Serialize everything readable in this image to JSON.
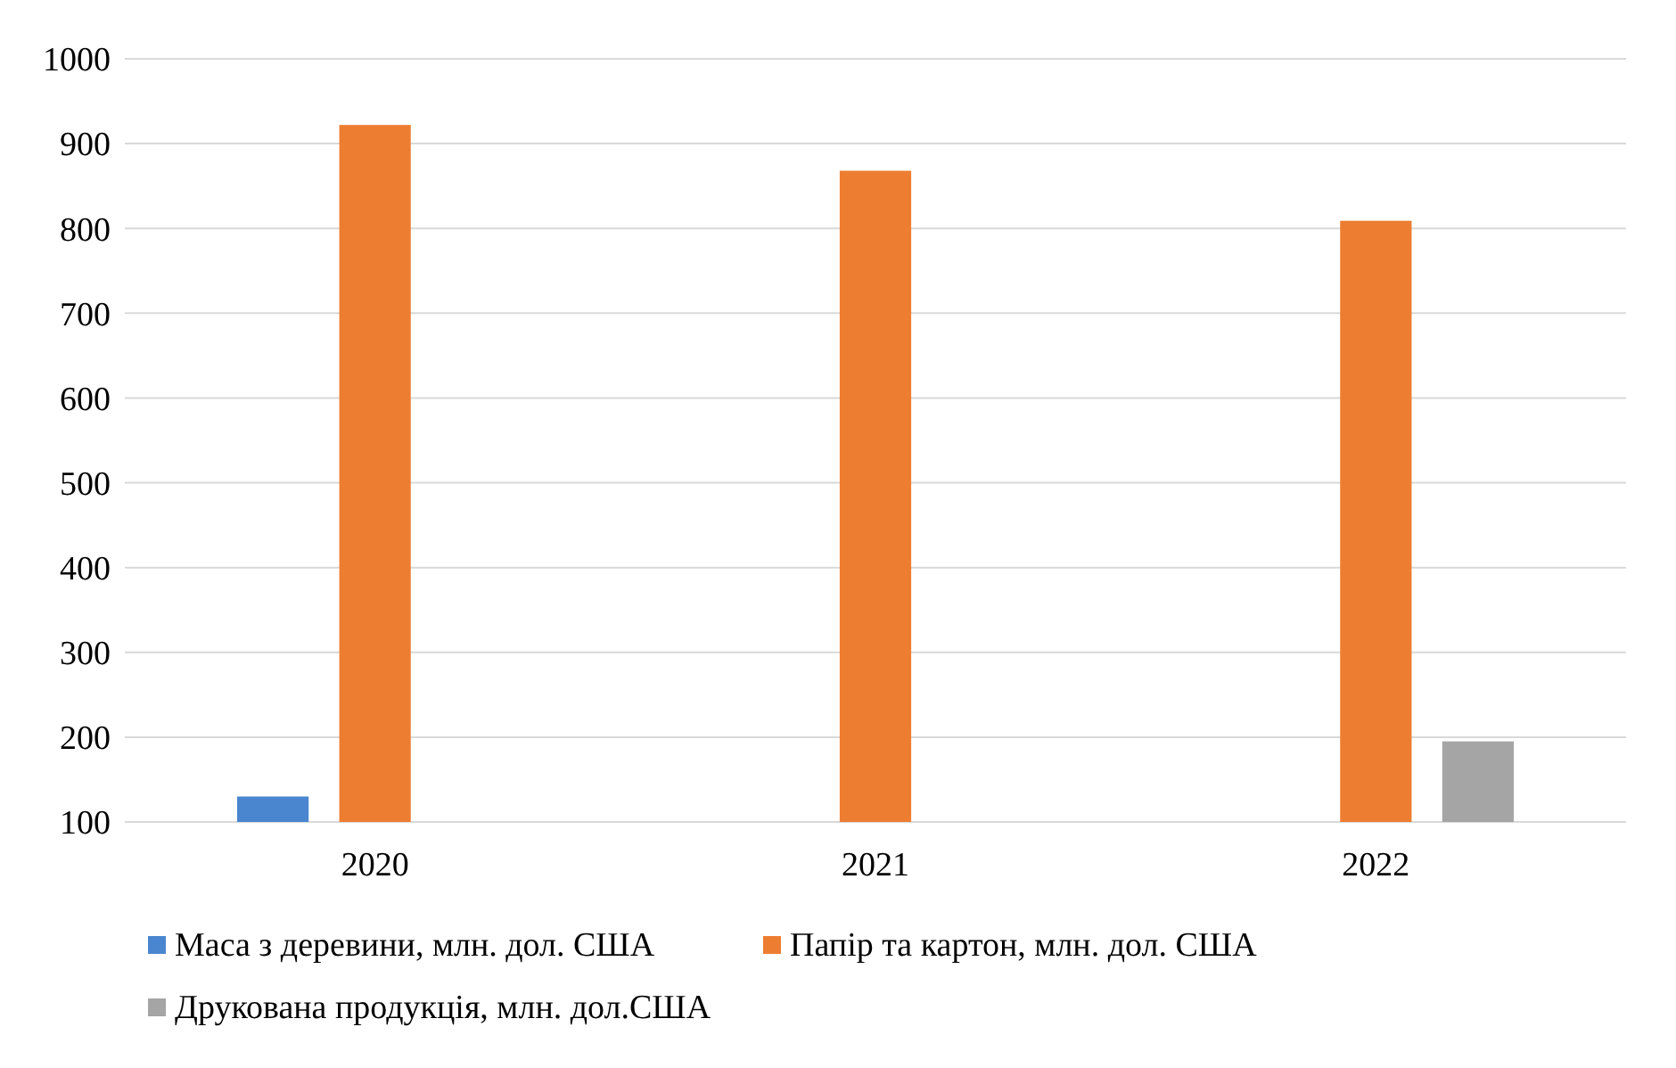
{
  "chart_data": {
    "type": "bar",
    "categories": [
      "2020",
      "2021",
      "2022"
    ],
    "series": [
      {
        "name": "Маса з деревини, млн. дол. США",
        "color": "#4a86cf",
        "values": [
          130,
          null,
          null
        ]
      },
      {
        "name": "Папір та картон, млн. дол. США",
        "color": "#ed7d31",
        "values": [
          922,
          868,
          809
        ]
      },
      {
        "name": "Друкована продукція, млн. дол.США",
        "color": "#a5a5a5",
        "values": [
          null,
          null,
          195
        ]
      }
    ],
    "ylim": [
      100,
      1000
    ],
    "yticks": [
      100,
      200,
      300,
      400,
      500,
      600,
      700,
      800,
      900,
      1000
    ],
    "grid": "y",
    "legend": "bottom"
  }
}
